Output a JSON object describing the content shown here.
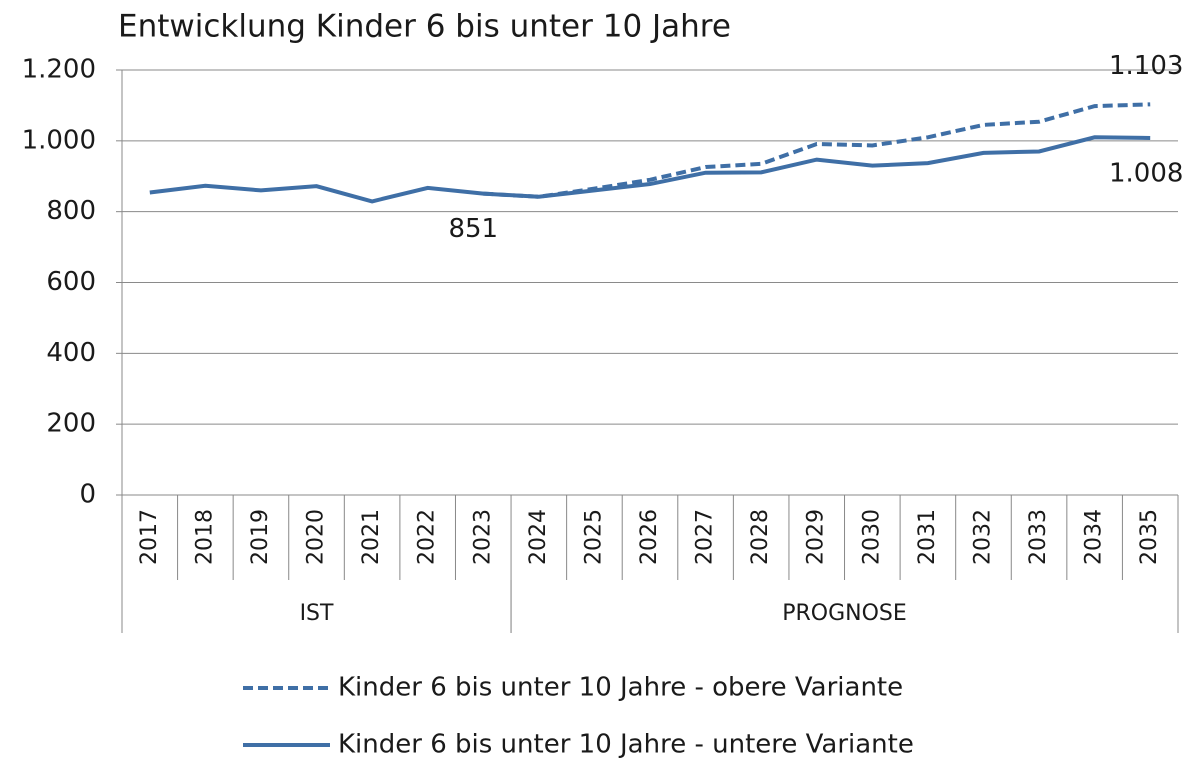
{
  "chart_data": {
    "type": "line",
    "title": "Entwicklung Kinder 6 bis unter 10 Jahre",
    "categories": [
      "2017",
      "2018",
      "2019",
      "2020",
      "2021",
      "2022",
      "2023",
      "2024",
      "2025",
      "2026",
      "2027",
      "2028",
      "2029",
      "2030",
      "2031",
      "2032",
      "2033",
      "2034",
      "2035"
    ],
    "groups": [
      {
        "label": "IST",
        "from": 0,
        "to": 6
      },
      {
        "label": "PROGNOSE",
        "from": 7,
        "to": 18
      }
    ],
    "series": [
      {
        "name": "Kinder 6 bis unter 10 Jahre - obere Variante",
        "color": "#3f6fa6",
        "dash": true,
        "values": [
          null,
          null,
          null,
          null,
          null,
          null,
          851,
          842,
          865,
          890,
          926,
          935,
          991,
          987,
          1010,
          1045,
          1054,
          1098,
          1103
        ],
        "value_labels": [
          null,
          null,
          null,
          null,
          null,
          null,
          null,
          null,
          null,
          null,
          null,
          null,
          null,
          null,
          null,
          null,
          null,
          null,
          "1.103"
        ]
      },
      {
        "name": "Kinder 6 bis unter 10 Jahre - untere Variante",
        "color": "#3f6fa6",
        "dash": false,
        "values": [
          854,
          873,
          860,
          872,
          829,
          867,
          851,
          842,
          860,
          878,
          910,
          911,
          947,
          930,
          937,
          966,
          970,
          1010,
          1008
        ],
        "value_labels": [
          null,
          null,
          null,
          null,
          null,
          null,
          "851",
          null,
          null,
          null,
          null,
          null,
          null,
          null,
          null,
          null,
          null,
          null,
          "1.008"
        ]
      }
    ],
    "ylim": [
      0,
      1200
    ],
    "yticks": [
      0,
      200,
      400,
      600,
      800,
      {
        "value": 1000,
        "label": "1.000"
      },
      {
        "value": 1200,
        "label": "1.200"
      }
    ],
    "grid": true,
    "legend": "bottom"
  }
}
